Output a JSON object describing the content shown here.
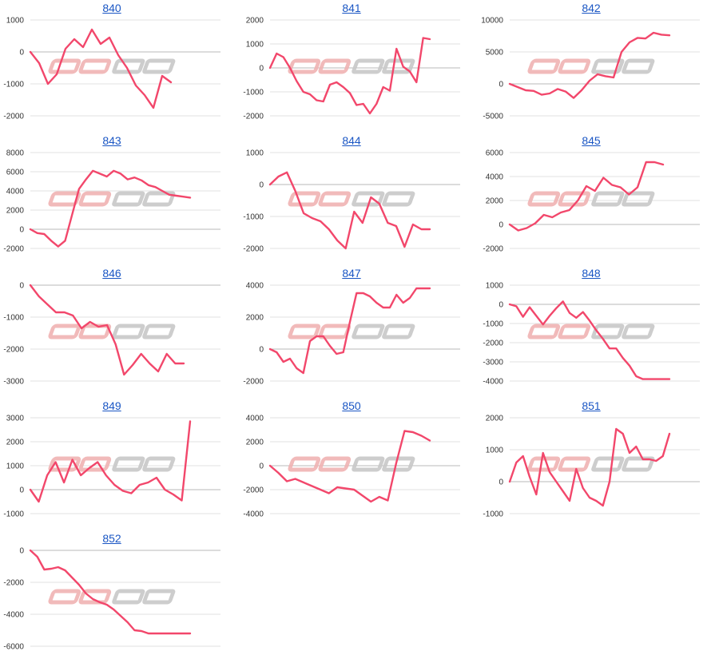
{
  "colors": {
    "line": "#f2476b",
    "title": "#1a56c4",
    "watermark_red": "#f0b3b3",
    "watermark_gray": "#c8c8c8"
  },
  "watermark_icon": "minkabu-logo-watermark",
  "chart_data": [
    {
      "title": "840",
      "type": "line",
      "yticks": [
        1000,
        0,
        -1000,
        -2000
      ],
      "ylim": [
        -2000,
        1000
      ],
      "x": [
        0,
        1,
        2,
        3,
        4,
        5,
        6,
        7,
        8,
        9,
        10,
        11,
        12,
        13,
        14,
        15,
        16
      ],
      "values": [
        0,
        -350,
        -1000,
        -700,
        100,
        400,
        150,
        700,
        250,
        450,
        -100,
        -500,
        -1050,
        -1350,
        -1750,
        -750,
        -950
      ]
    },
    {
      "title": "841",
      "type": "line",
      "yticks": [
        2000,
        1000,
        0,
        -1000,
        -2000
      ],
      "ylim": [
        -2000,
        2000
      ],
      "x": [
        0,
        1,
        2,
        3,
        4,
        5,
        6,
        7,
        8,
        9,
        10,
        11,
        12,
        13,
        14,
        15,
        16,
        17,
        18,
        19,
        20,
        21,
        22,
        23,
        24
      ],
      "values": [
        0,
        600,
        450,
        0,
        -550,
        -1000,
        -1100,
        -1350,
        -1400,
        -700,
        -600,
        -800,
        -1050,
        -1550,
        -1500,
        -1900,
        -1500,
        -800,
        -950,
        800,
        50,
        -150,
        -600,
        1250,
        1200
      ]
    },
    {
      "title": "842",
      "type": "line",
      "yticks": [
        10000,
        5000,
        0,
        -5000
      ],
      "ylim": [
        -5000,
        10000
      ],
      "x": [
        0,
        1,
        2,
        3,
        4,
        5,
        6,
        7,
        8,
        9,
        10,
        11,
        12,
        13,
        14,
        15,
        16,
        17,
        18,
        19,
        20
      ],
      "values": [
        0,
        -500,
        -1000,
        -1100,
        -1700,
        -1500,
        -800,
        -1200,
        -2200,
        -1000,
        500,
        1500,
        1200,
        1000,
        5000,
        6500,
        7200,
        7100,
        8000,
        7700,
        7600
      ]
    },
    {
      "title": "843",
      "type": "line",
      "yticks": [
        8000,
        6000,
        4000,
        2000,
        0,
        -2000
      ],
      "ylim": [
        -2000,
        8000
      ],
      "x": [
        0,
        1,
        2,
        3,
        4,
        5,
        6,
        7,
        8,
        9,
        10,
        11,
        12,
        13,
        14,
        15,
        16,
        17,
        18,
        19,
        20,
        21,
        22,
        23
      ],
      "values": [
        0,
        -400,
        -500,
        -1200,
        -1800,
        -1200,
        1500,
        4200,
        5200,
        6100,
        5800,
        5500,
        6100,
        5800,
        5200,
        5400,
        5100,
        4600,
        4400,
        4000,
        3600,
        3500,
        3400,
        3300
      ]
    },
    {
      "title": "844",
      "type": "line",
      "yticks": [
        1000,
        0,
        -1000,
        -2000
      ],
      "ylim": [
        -2000,
        1000
      ],
      "x": [
        0,
        1,
        2,
        3,
        4,
        5,
        6,
        7,
        8,
        9,
        10,
        11,
        12,
        13,
        14,
        15,
        16,
        17,
        18,
        19
      ],
      "values": [
        0,
        250,
        380,
        -200,
        -900,
        -1050,
        -1150,
        -1400,
        -1750,
        -2000,
        -850,
        -1200,
        -400,
        -600,
        -1200,
        -1300,
        -1950,
        -1250,
        -1400,
        -1400
      ]
    },
    {
      "title": "845",
      "type": "line",
      "yticks": [
        6000,
        4000,
        2000,
        0,
        -2000
      ],
      "ylim": [
        -2000,
        6000
      ],
      "x": [
        0,
        1,
        2,
        3,
        4,
        5,
        6,
        7,
        8,
        9,
        10,
        11,
        12,
        13,
        14,
        15,
        16,
        17,
        18
      ],
      "values": [
        0,
        -500,
        -300,
        100,
        800,
        600,
        1000,
        1200,
        2000,
        3200,
        2800,
        3900,
        3300,
        3100,
        2500,
        3100,
        5200,
        5200,
        5000
      ]
    },
    {
      "title": "846",
      "type": "line",
      "yticks": [
        0,
        -1000,
        -2000,
        -3000
      ],
      "ylim": [
        -3000,
        0
      ],
      "x": [
        0,
        1,
        2,
        3,
        4,
        5,
        6,
        7,
        8,
        9,
        10,
        11,
        12,
        13,
        14,
        15,
        16,
        17,
        18
      ],
      "values": [
        0,
        -350,
        -600,
        -850,
        -850,
        -950,
        -1350,
        -1150,
        -1300,
        -1250,
        -1850,
        -2800,
        -2500,
        -2150,
        -2450,
        -2700,
        -2150,
        -2450,
        -2450
      ]
    },
    {
      "title": "847",
      "type": "line",
      "yticks": [
        4000,
        2000,
        0,
        -2000
      ],
      "ylim": [
        -2000,
        4000
      ],
      "x": [
        0,
        1,
        2,
        3,
        4,
        5,
        6,
        7,
        8,
        9,
        10,
        11,
        12,
        13,
        14,
        15,
        16,
        17,
        18,
        19,
        20,
        21,
        22,
        23,
        24
      ],
      "values": [
        0,
        -200,
        -800,
        -600,
        -1200,
        -1500,
        500,
        800,
        800,
        200,
        -300,
        -200,
        1700,
        3500,
        3500,
        3300,
        2900,
        2600,
        2600,
        3400,
        2900,
        3200,
        3800,
        3800,
        3800
      ]
    },
    {
      "title": "848",
      "type": "line",
      "yticks": [
        1000,
        0,
        -1000,
        -2000,
        -3000,
        -4000
      ],
      "ylim": [
        -4000,
        1000
      ],
      "x": [
        0,
        1,
        2,
        3,
        4,
        5,
        6,
        7,
        8,
        9,
        10,
        11,
        12,
        13,
        14,
        15,
        16,
        17,
        18,
        19,
        20,
        21,
        22,
        23,
        24
      ],
      "values": [
        0,
        -100,
        -650,
        -150,
        -600,
        -1050,
        -600,
        -200,
        150,
        -450,
        -700,
        -400,
        -850,
        -1350,
        -1800,
        -2300,
        -2300,
        -2800,
        -3200,
        -3750,
        -3900,
        -3900,
        -3900,
        -3900,
        -3900
      ]
    },
    {
      "title": "849",
      "type": "line",
      "yticks": [
        3000,
        2000,
        1000,
        0,
        -1000
      ],
      "ylim": [
        -1000,
        3000
      ],
      "x": [
        0,
        1,
        2,
        3,
        4,
        5,
        6,
        7,
        8,
        9,
        10,
        11,
        12,
        13,
        14,
        15,
        16,
        17,
        18,
        19
      ],
      "values": [
        0,
        -500,
        600,
        1150,
        300,
        1250,
        600,
        900,
        1150,
        600,
        200,
        -50,
        -150,
        200,
        300,
        500,
        0,
        -200,
        -450,
        2850
      ]
    },
    {
      "title": "850",
      "type": "line",
      "yticks": [
        4000,
        2000,
        0,
        -2000,
        -4000
      ],
      "ylim": [
        -4000,
        4000
      ],
      "x": [
        0,
        1,
        2,
        3,
        4,
        5,
        6,
        7,
        8,
        9,
        10,
        11,
        12,
        13,
        14,
        15,
        16,
        17,
        18,
        19
      ],
      "values": [
        0,
        -600,
        -1300,
        -1100,
        -1400,
        -1700,
        -2000,
        -2300,
        -1800,
        -1900,
        -2000,
        -2500,
        -3000,
        -2600,
        -2900,
        200,
        2900,
        2800,
        2500,
        2100
      ]
    },
    {
      "title": "851",
      "type": "line",
      "yticks": [
        2000,
        1000,
        0,
        -1000
      ],
      "ylim": [
        -1000,
        2000
      ],
      "x": [
        0,
        1,
        2,
        3,
        4,
        5,
        6,
        7,
        8,
        9,
        10,
        11,
        12,
        13,
        14,
        15,
        16,
        17,
        18,
        19,
        20,
        21,
        22,
        23,
        24
      ],
      "values": [
        0,
        600,
        800,
        150,
        -400,
        900,
        300,
        0,
        -300,
        -600,
        400,
        -200,
        -500,
        -600,
        -750,
        0,
        1650,
        1500,
        900,
        1100,
        700,
        700,
        650,
        800,
        1500
      ]
    },
    {
      "title": "852",
      "type": "line",
      "yticks": [
        0,
        -2000,
        -4000,
        -6000
      ],
      "ylim": [
        -6000,
        0
      ],
      "x": [
        0,
        1,
        2,
        3,
        4,
        5,
        6,
        7,
        8,
        9,
        10,
        11,
        12,
        13,
        14,
        15,
        16,
        17,
        18,
        19,
        20,
        21,
        22,
        23
      ],
      "values": [
        0,
        -400,
        -1200,
        -1150,
        -1050,
        -1250,
        -1700,
        -2150,
        -2700,
        -3050,
        -3250,
        -3400,
        -3700,
        -4100,
        -4500,
        -5000,
        -5050,
        -5200,
        -5200,
        -5200,
        -5200,
        -5200,
        -5200,
        -5200
      ]
    }
  ]
}
